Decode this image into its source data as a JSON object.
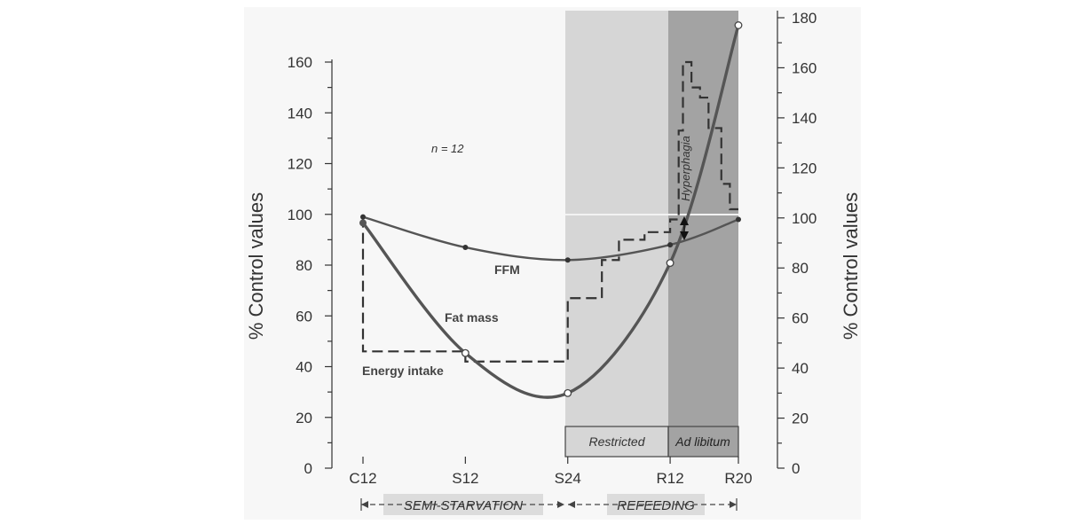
{
  "chart_data": {
    "type": "line",
    "categories": [
      "C12",
      "S12",
      "S24",
      "R12",
      "R20"
    ],
    "x": [
      0,
      12,
      24,
      36,
      44
    ],
    "ylabel_left": "% Control values",
    "ylabel_right": "% Control values",
    "ylim_left": [
      0,
      165
    ],
    "ylim_right": [
      0,
      180
    ],
    "yticks_left": [
      "0",
      "20",
      "40",
      "60",
      "80",
      "100",
      "120",
      "140",
      "160"
    ],
    "yticks_right": [
      "0",
      "20",
      "40",
      "60",
      "80",
      "100",
      "120",
      "140",
      "160",
      "180"
    ],
    "annotation_n": "n = 12",
    "series": [
      {
        "name": "FFM",
        "axis": "left",
        "x": [
          0,
          12,
          24,
          36,
          44
        ],
        "values": [
          99,
          87,
          82,
          88,
          98
        ]
      },
      {
        "name": "Fat mass",
        "axis": "right",
        "x": [
          0,
          12,
          24,
          36,
          44
        ],
        "values": [
          98,
          46,
          30,
          82,
          177
        ]
      },
      {
        "name": "Energy intake",
        "axis": "left",
        "style": "dashed-step",
        "steps": [
          [
            0,
            99
          ],
          [
            0,
            46
          ],
          [
            12,
            46
          ],
          [
            12,
            42
          ],
          [
            24,
            42
          ],
          [
            24,
            67
          ],
          [
            28,
            67
          ],
          [
            28,
            82
          ],
          [
            30,
            82
          ],
          [
            30,
            90
          ],
          [
            33,
            90
          ],
          [
            33,
            93
          ],
          [
            36,
            93
          ],
          [
            36,
            98
          ],
          [
            37,
            98
          ],
          [
            37,
            133
          ],
          [
            37.5,
            133
          ],
          [
            37.5,
            160
          ],
          [
            38.5,
            160
          ],
          [
            38.5,
            150
          ],
          [
            39.5,
            150
          ],
          [
            39.5,
            146
          ],
          [
            40.5,
            146
          ],
          [
            40.5,
            134
          ],
          [
            42,
            134
          ],
          [
            42,
            112
          ],
          [
            43,
            112
          ],
          [
            43,
            102
          ],
          [
            44,
            102
          ]
        ]
      }
    ],
    "phase_labels": {
      "restricted": "Restricted",
      "ad_libitum": "Ad libitum",
      "hyperphagia": "Hyperphagia"
    },
    "periods": {
      "semi_starvation": "SEMI-STARVATION",
      "refeeding": "REFEEDING"
    },
    "colors": {
      "curve": "#555555",
      "shade_light": "#d6d6d6",
      "shade_dark": "#a3a3a3",
      "ink": "#333333"
    }
  }
}
